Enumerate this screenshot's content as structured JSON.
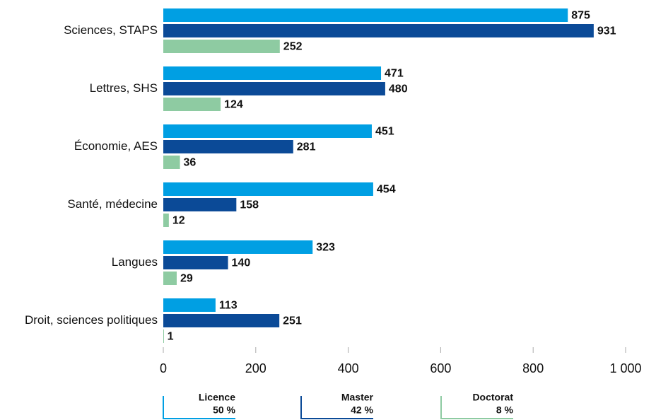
{
  "chart_data": {
    "type": "bar",
    "orientation": "horizontal",
    "categories": [
      "Sciences, STAPS",
      "Lettres, SHS",
      "Économie, AES",
      "Santé, médecine",
      "Langues",
      "Droit, sciences politiques"
    ],
    "series": [
      {
        "name": "Licence",
        "share": "50 %",
        "color": "#009fe3",
        "values": [
          875,
          471,
          451,
          454,
          323,
          113
        ]
      },
      {
        "name": "Master",
        "share": "42 %",
        "color": "#0b4a97",
        "values": [
          931,
          480,
          281,
          158,
          140,
          251
        ]
      },
      {
        "name": "Doctorat",
        "share": "8 %",
        "color": "#8ecba2",
        "values": [
          252,
          124,
          36,
          12,
          29,
          1
        ]
      }
    ],
    "xlim": [
      0,
      1000
    ],
    "xticks": [
      0,
      200,
      400,
      600,
      800,
      {
        "value": 1000,
        "label": "1 000"
      }
    ]
  }
}
